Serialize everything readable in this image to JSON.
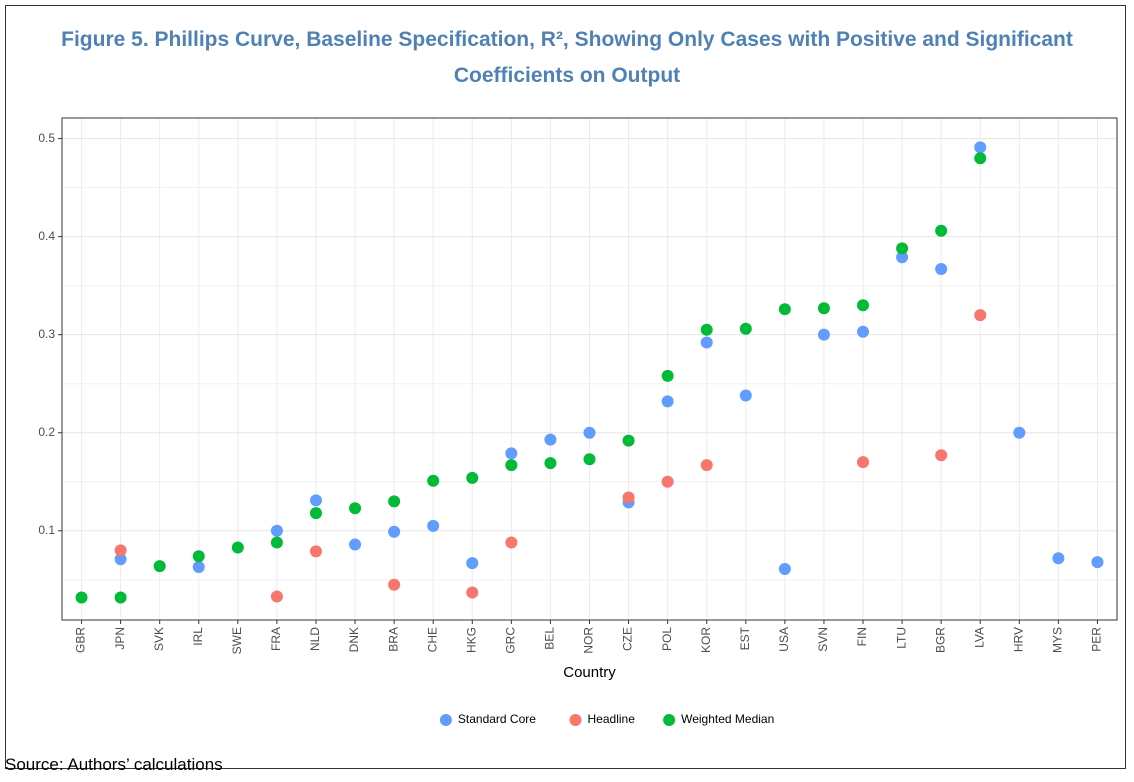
{
  "chart_data": {
    "type": "scatter",
    "title": "Figure 5. Phillips Curve, Baseline Specification, R², Showing Only Cases with Positive and Significant Coefficients on Output",
    "x_label": "Country",
    "source": "Source: Authors’ calculations",
    "categories": [
      "GBR",
      "JPN",
      "SVK",
      "IRL",
      "SWE",
      "FRA",
      "NLD",
      "DNK",
      "BRA",
      "CHE",
      "HKG",
      "GRC",
      "BEL",
      "NOR",
      "CZE",
      "POL",
      "KOR",
      "EST",
      "USA",
      "SVN",
      "FIN",
      "LTU",
      "BGR",
      "LVA",
      "HRV",
      "MYS",
      "PER"
    ],
    "series": [
      {
        "name": "Standard Core",
        "color": "#619cff",
        "values": [
          null,
          0.071,
          null,
          0.063,
          null,
          0.1,
          0.131,
          0.086,
          0.099,
          0.105,
          0.067,
          0.179,
          0.193,
          0.2,
          0.129,
          0.232,
          0.292,
          0.238,
          0.061,
          0.3,
          0.303,
          0.379,
          0.367,
          0.491,
          0.2,
          0.072,
          0.068
        ]
      },
      {
        "name": "Headline",
        "color": "#f8766d",
        "values": [
          null,
          0.08,
          null,
          null,
          null,
          0.033,
          0.079,
          null,
          0.045,
          null,
          0.037,
          0.088,
          null,
          null,
          0.134,
          0.15,
          0.167,
          null,
          null,
          null,
          0.17,
          null,
          0.177,
          0.32,
          null,
          null,
          null
        ]
      },
      {
        "name": "Weighted Median",
        "color": "#00ba38",
        "values": [
          0.032,
          0.032,
          0.064,
          0.074,
          0.083,
          0.088,
          0.118,
          0.123,
          0.13,
          0.151,
          0.154,
          0.167,
          0.169,
          0.173,
          0.192,
          0.258,
          0.305,
          0.306,
          0.326,
          0.327,
          0.33,
          0.388,
          0.406,
          0.48,
          null,
          null,
          null
        ]
      }
    ],
    "ylim": [
      0.009,
      0.521
    ],
    "yticks": [
      0.1,
      0.2,
      0.3,
      0.4,
      0.5
    ],
    "grid": true,
    "legend": "bottom"
  }
}
